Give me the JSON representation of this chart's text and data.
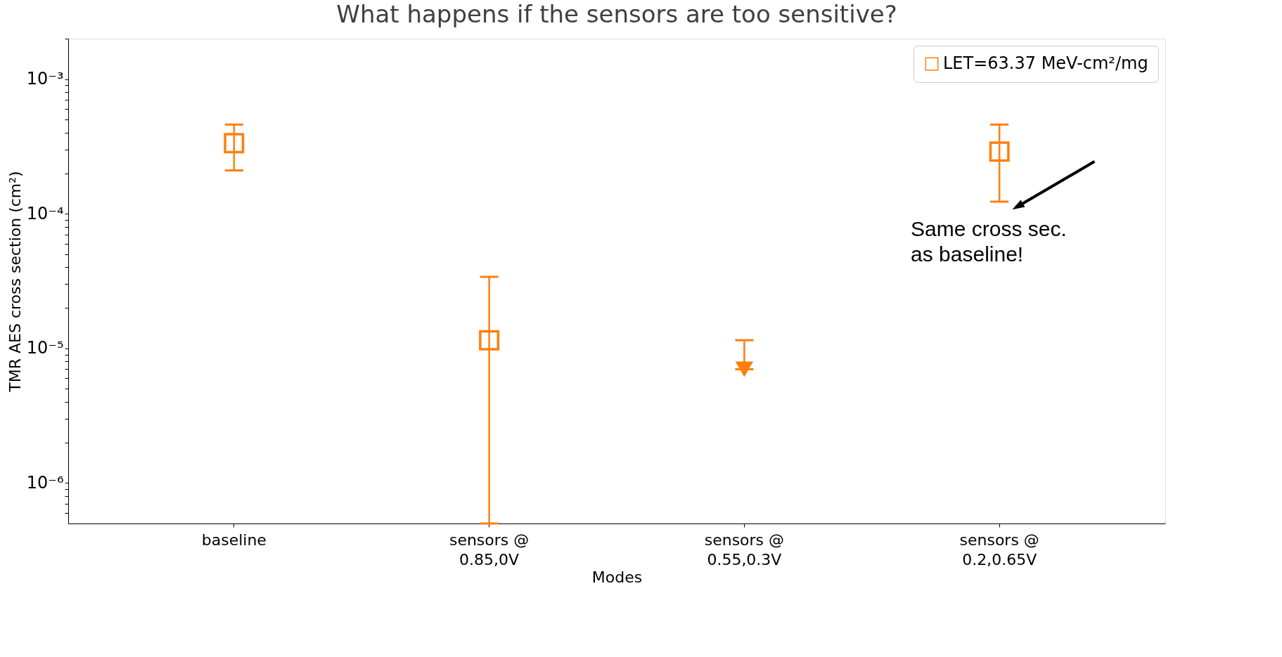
{
  "chart_data": {
    "type": "scatter",
    "title": "What happens if the sensors are too sensitive?",
    "xlabel": "Modes",
    "ylabel": "TMR AES cross section (cm²)",
    "categories": [
      "baseline",
      "sensors @\n0.85,0V",
      "sensors @\n0.55,0.3V",
      "sensors @\n0.2,0.65V"
    ],
    "series": [
      {
        "name": "LET=63.37 MeV-cm²/mg",
        "color": "#ff7f0e",
        "marker": "square",
        "values": [
          0.000335,
          1.15e-05,
          null,
          0.00029
        ],
        "errors": [
          [
            0.00021,
            0.00046
          ],
          [
            5e-07,
            3.4e-05
          ],
          null,
          [
            0.000123,
            0.00046
          ]
        ]
      },
      {
        "color": "#ff7f0e",
        "marker": "triangle",
        "values": [
          null,
          null,
          7e-06,
          null
        ],
        "errors": [
          null,
          null,
          [
            7e-06,
            1.15e-05
          ],
          null
        ]
      }
    ],
    "log": "y",
    "ylim": [
      5e-07,
      0.002
    ],
    "yticks": [
      {
        "value": 6e-07,
        "label": null
      },
      {
        "value": 7e-07,
        "label": null
      },
      {
        "value": 8e-07,
        "label": null
      },
      {
        "value": 9e-07,
        "label": null
      },
      {
        "value": 1e-06,
        "label": "10⁻⁶"
      },
      {
        "value": 2e-06,
        "label": null
      },
      {
        "value": 3e-06,
        "label": null
      },
      {
        "value": 4e-06,
        "label": null
      },
      {
        "value": 5e-06,
        "label": null
      },
      {
        "value": 6e-06,
        "label": null
      },
      {
        "value": 7e-06,
        "label": null
      },
      {
        "value": 8e-06,
        "label": null
      },
      {
        "value": 9e-06,
        "label": null
      },
      {
        "value": 1e-05,
        "label": "10⁻⁵"
      },
      {
        "value": 2e-05,
        "label": null
      },
      {
        "value": 3e-05,
        "label": null
      },
      {
        "value": 4e-05,
        "label": null
      },
      {
        "value": 5e-05,
        "label": null
      },
      {
        "value": 6e-05,
        "label": null
      },
      {
        "value": 7e-05,
        "label": null
      },
      {
        "value": 8e-05,
        "label": null
      },
      {
        "value": 9e-05,
        "label": null
      },
      {
        "value": 0.0001,
        "label": "10⁻⁴"
      },
      {
        "value": 0.0002,
        "label": null
      },
      {
        "value": 0.0003,
        "label": null
      },
      {
        "value": 0.0004,
        "label": null
      },
      {
        "value": 0.0005,
        "label": null
      },
      {
        "value": 0.0006,
        "label": null
      },
      {
        "value": 0.0007,
        "label": null
      },
      {
        "value": 0.0008,
        "label": null
      },
      {
        "value": 0.0009,
        "label": null
      },
      {
        "value": 0.001,
        "label": "10⁻³"
      },
      {
        "value": 0.002,
        "label": null
      }
    ],
    "grid": false,
    "legend": "top right",
    "annotations": [
      "Same cross sec.\nas baseline!"
    ]
  }
}
